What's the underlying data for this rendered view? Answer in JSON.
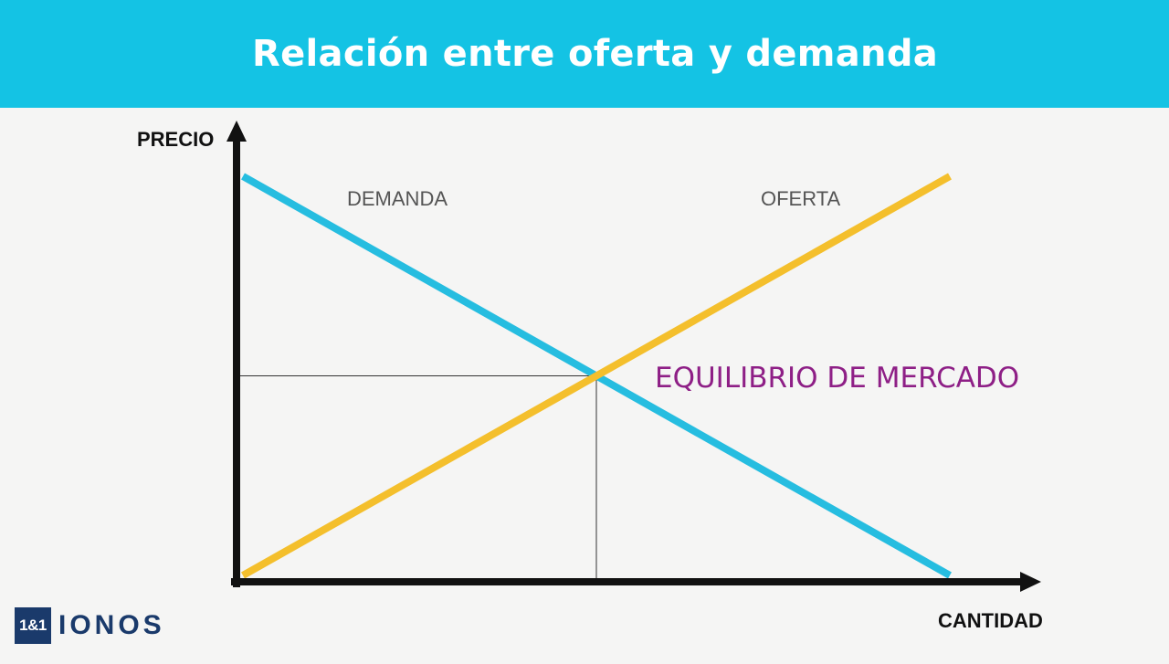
{
  "header": {
    "title": "Relación entre oferta y demanda"
  },
  "logo": {
    "box_text": "1&1",
    "brand_text": "IONOS"
  },
  "colors": {
    "header_bg": "#14c3e4",
    "demand": "#26bde0",
    "supply": "#f4bf2c",
    "equilibrium_label": "#8e1f86",
    "axes": "#111111"
  },
  "chart_data": {
    "type": "line",
    "title": "Relación entre oferta y demanda",
    "xlabel": "CANTIDAD",
    "ylabel": "PRECIO",
    "xlim": [
      0,
      100
    ],
    "ylim": [
      0,
      100
    ],
    "grid": false,
    "series": [
      {
        "name": "DEMANDA",
        "x": [
          0,
          100
        ],
        "y": [
          100,
          0
        ],
        "color": "#26bde0"
      },
      {
        "name": "OFERTA",
        "x": [
          0,
          100
        ],
        "y": [
          0,
          100
        ],
        "color": "#f4bf2c"
      }
    ],
    "annotations": [
      {
        "text": "EQUILIBRIO DE MERCADO",
        "x": 50,
        "y": 50
      }
    ],
    "equilibrium": {
      "x": 50,
      "y": 50
    }
  }
}
